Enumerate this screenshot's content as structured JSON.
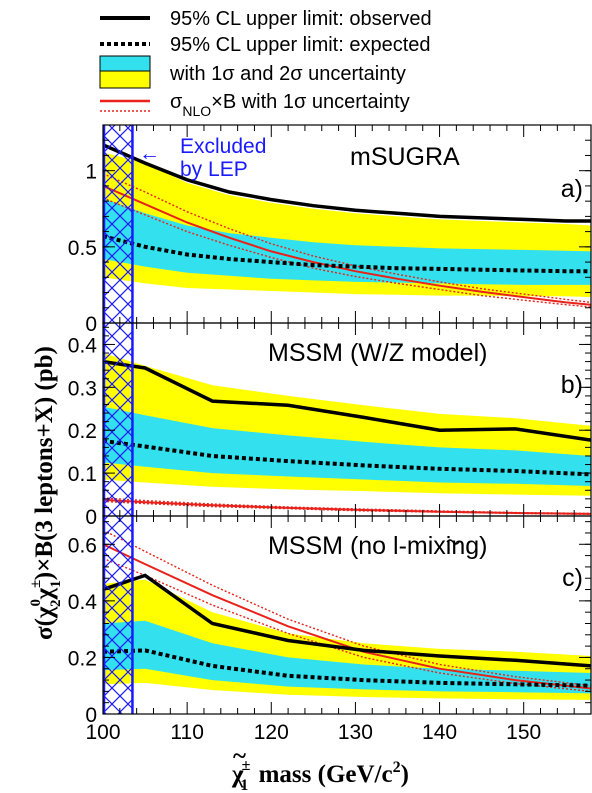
{
  "colors": {
    "observed": "#000000",
    "expected": "#000000",
    "band1": "#33e1ee",
    "band2": "#ffff00",
    "theory": "#e8221a",
    "lep": "#1a1aff"
  },
  "legend": {
    "items": [
      {
        "key": "observed",
        "label": "95% CL upper limit: observed"
      },
      {
        "key": "expected",
        "label": "95% CL upper limit: expected"
      },
      {
        "key": "bands",
        "label": "with 1σ and 2σ uncertainty"
      }
    ],
    "theory_sigma": "σ",
    "theory_sub": "NLO",
    "theory_rest": "×B with 1σ uncertainty"
  },
  "lep": {
    "line1": "Excluded",
    "line2": "by LEP",
    "arrow": "←"
  },
  "x_axis": {
    "title_parts": {
      "sym": "χ",
      "tilde": "~",
      "sup": "±",
      "sub": "1",
      "rest": " mass (GeV/c",
      "pow": "2",
      "close": ")"
    }
  },
  "y_axis": {
    "title_parts": {
      "a": "σ(",
      "chi": "χ",
      "sup0": "0",
      "sub2": "2",
      "supPM": "±",
      "sub1": "1",
      "b": ")×B(3 leptons+X) (pb)"
    }
  },
  "chart_data": [
    {
      "type": "line",
      "panel": "a)",
      "title": "mSUGRA",
      "xlim": [
        100,
        158
      ],
      "ylim": [
        0,
        1.3
      ],
      "xticks": [
        100,
        110,
        120,
        130,
        140,
        150
      ],
      "yticks": [
        0,
        0.5,
        1
      ],
      "lep_excluded_max": 103.5,
      "x": [
        100,
        105,
        110,
        115,
        120,
        125,
        130,
        135,
        140,
        145,
        150,
        155,
        158
      ],
      "series": [
        {
          "key": "observed",
          "values": [
            1.17,
            1.05,
            0.94,
            0.86,
            0.81,
            0.77,
            0.74,
            0.72,
            0.7,
            0.69,
            0.68,
            0.67,
            0.67
          ]
        },
        {
          "key": "expected",
          "values": [
            0.57,
            0.5,
            0.45,
            0.42,
            0.4,
            0.38,
            0.37,
            0.36,
            0.355,
            0.35,
            0.345,
            0.34,
            0.34
          ]
        },
        {
          "key": "band1_low",
          "values": [
            0.42,
            0.37,
            0.33,
            0.31,
            0.29,
            0.28,
            0.27,
            0.265,
            0.26,
            0.255,
            0.25,
            0.25,
            0.25
          ]
        },
        {
          "key": "band1_high",
          "values": [
            0.82,
            0.72,
            0.64,
            0.59,
            0.56,
            0.53,
            0.51,
            0.5,
            0.49,
            0.485,
            0.48,
            0.475,
            0.47
          ]
        },
        {
          "key": "band2_low",
          "values": [
            0.3,
            0.26,
            0.23,
            0.22,
            0.21,
            0.2,
            0.19,
            0.185,
            0.18,
            0.18,
            0.175,
            0.175,
            0.17
          ]
        },
        {
          "key": "band2_high",
          "values": [
            1.12,
            1.05,
            0.92,
            0.84,
            0.79,
            0.75,
            0.72,
            0.7,
            0.68,
            0.67,
            0.66,
            0.65,
            0.64
          ]
        },
        {
          "key": "theory",
          "values": [
            0.9,
            0.78,
            0.66,
            0.56,
            0.47,
            0.4,
            0.34,
            0.29,
            0.245,
            0.205,
            0.17,
            0.135,
            0.12
          ]
        },
        {
          "key": "theory_low",
          "values": [
            0.82,
            0.71,
            0.6,
            0.51,
            0.43,
            0.36,
            0.305,
            0.26,
            0.22,
            0.18,
            0.15,
            0.12,
            0.105
          ]
        },
        {
          "key": "theory_high",
          "values": [
            0.98,
            0.86,
            0.73,
            0.62,
            0.52,
            0.44,
            0.375,
            0.32,
            0.27,
            0.225,
            0.19,
            0.155,
            0.135
          ]
        }
      ]
    },
    {
      "type": "line",
      "panel": "b)",
      "title": "MSSM (W/Z model)",
      "xlim": [
        100,
        158
      ],
      "ylim": [
        0,
        0.45
      ],
      "xticks": [
        100,
        110,
        120,
        130,
        140,
        150
      ],
      "yticks": [
        0,
        0.1,
        0.2,
        0.3,
        0.4
      ],
      "lep_excluded_max": 103.5,
      "x": [
        100,
        105,
        113,
        122,
        131,
        140,
        149,
        158
      ],
      "series": [
        {
          "key": "observed",
          "values": [
            0.36,
            0.345,
            0.268,
            0.258,
            0.23,
            0.2,
            0.203,
            0.177
          ]
        },
        {
          "key": "expected",
          "values": [
            0.175,
            0.162,
            0.14,
            0.128,
            0.118,
            0.11,
            0.105,
            0.097
          ]
        },
        {
          "key": "band1_low",
          "values": [
            0.125,
            0.115,
            0.1,
            0.092,
            0.085,
            0.078,
            0.075,
            0.07
          ]
        },
        {
          "key": "band1_high",
          "values": [
            0.255,
            0.235,
            0.205,
            0.188,
            0.173,
            0.16,
            0.153,
            0.14
          ]
        },
        {
          "key": "band2_low",
          "values": [
            0.085,
            0.078,
            0.068,
            0.062,
            0.058,
            0.053,
            0.05,
            0.047
          ]
        },
        {
          "key": "band2_high",
          "values": [
            0.38,
            0.35,
            0.305,
            0.28,
            0.258,
            0.238,
            0.228,
            0.21
          ]
        },
        {
          "key": "theory",
          "values": [
            0.038,
            0.032,
            0.025,
            0.019,
            0.014,
            0.01,
            0.007,
            0.005
          ]
        },
        {
          "key": "theory_low",
          "values": [
            0.034,
            0.029,
            0.022,
            0.017,
            0.012,
            0.009,
            0.006,
            0.004
          ]
        },
        {
          "key": "theory_high",
          "values": [
            0.042,
            0.036,
            0.028,
            0.021,
            0.016,
            0.012,
            0.008,
            0.006
          ]
        }
      ]
    },
    {
      "type": "line",
      "panel": "c)",
      "title": "MSSM (no l-mixing)",
      "xlim": [
        100,
        158
      ],
      "ylim": [
        0,
        0.7
      ],
      "xticks": [
        100,
        110,
        120,
        130,
        140,
        150
      ],
      "yticks": [
        0,
        0.2,
        0.4,
        0.6
      ],
      "lep_excluded_max": 103.5,
      "x": [
        100,
        105,
        113,
        122,
        131,
        140,
        149,
        158
      ],
      "series": [
        {
          "key": "observed",
          "values": [
            0.44,
            0.49,
            0.32,
            0.26,
            0.225,
            0.205,
            0.19,
            0.17
          ]
        },
        {
          "key": "expected",
          "values": [
            0.22,
            0.225,
            0.17,
            0.135,
            0.12,
            0.11,
            0.105,
            0.1
          ]
        },
        {
          "key": "band1_low",
          "values": [
            0.155,
            0.16,
            0.12,
            0.097,
            0.087,
            0.08,
            0.077,
            0.073
          ]
        },
        {
          "key": "band1_high",
          "values": [
            0.32,
            0.33,
            0.25,
            0.2,
            0.175,
            0.16,
            0.153,
            0.145
          ]
        },
        {
          "key": "band2_low",
          "values": [
            0.105,
            0.11,
            0.085,
            0.068,
            0.06,
            0.055,
            0.052,
            0.05
          ]
        },
        {
          "key": "band2_high",
          "values": [
            0.46,
            0.475,
            0.36,
            0.285,
            0.25,
            0.23,
            0.22,
            0.205
          ]
        },
        {
          "key": "theory",
          "values": [
            0.6,
            0.53,
            0.42,
            0.31,
            0.22,
            0.16,
            0.12,
            0.09
          ]
        },
        {
          "key": "theory_low",
          "values": [
            0.55,
            0.49,
            0.385,
            0.285,
            0.2,
            0.145,
            0.108,
            0.08
          ]
        },
        {
          "key": "theory_high",
          "values": [
            0.65,
            0.575,
            0.455,
            0.335,
            0.24,
            0.175,
            0.132,
            0.1
          ]
        }
      ]
    }
  ]
}
